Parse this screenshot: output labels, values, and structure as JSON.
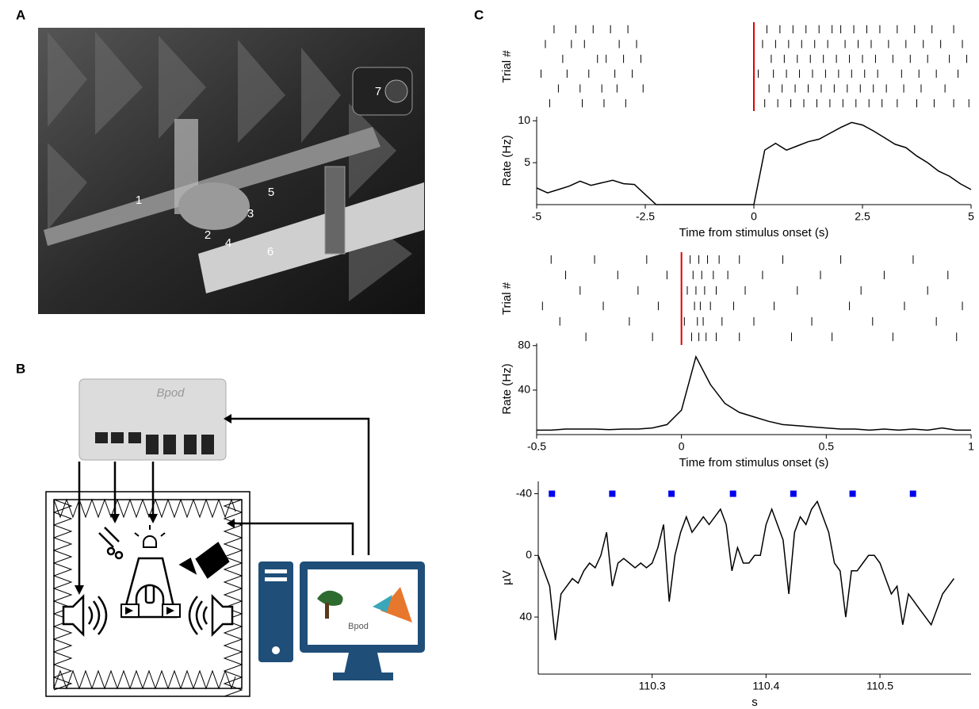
{
  "panel_labels": [
    "A",
    "B",
    "C"
  ],
  "photo": {
    "labels": [
      "1",
      "2",
      "3",
      "4",
      "5",
      "6",
      "7"
    ]
  },
  "diagram": {
    "device_label": "Bpod",
    "screen_label": "Bpod"
  },
  "chart_data": [
    {
      "type": "raster",
      "ylabel": "Trial #",
      "xlim": [
        -5,
        5
      ],
      "color": "#000000",
      "stimulus_onset": 0,
      "stimulus_color": "#e00000",
      "trials": [
        [
          -4.6,
          -4.1,
          -3.7,
          -3.3,
          -2.9,
          0.3,
          0.6,
          0.9,
          1.2,
          1.5,
          1.8,
          2.0,
          2.3,
          2.6,
          2.9,
          3.3,
          3.7,
          4.1,
          4.6
        ],
        [
          -4.8,
          -4.2,
          -3.9,
          -3.1,
          -2.7,
          0.2,
          0.5,
          0.8,
          1.1,
          1.4,
          1.7,
          2.1,
          2.4,
          2.7,
          3.1,
          3.5,
          3.9,
          4.3,
          4.8
        ],
        [
          -4.4,
          -3.6,
          -3.4,
          -3.0,
          -2.6,
          0.4,
          0.7,
          1.0,
          1.3,
          1.6,
          1.9,
          2.2,
          2.5,
          2.8,
          3.2,
          3.6,
          4.0,
          4.5,
          4.9
        ],
        [
          -4.9,
          -4.3,
          -3.8,
          -3.2,
          -2.8,
          0.1,
          0.45,
          0.75,
          1.05,
          1.35,
          1.65,
          1.95,
          2.25,
          2.55,
          2.85,
          3.4,
          3.8,
          4.2,
          4.7
        ],
        [
          -4.5,
          -4.0,
          -3.5,
          -3.15,
          -2.55,
          0.35,
          0.65,
          0.95,
          1.25,
          1.55,
          1.85,
          2.15,
          2.45,
          2.75,
          3.05,
          3.45,
          3.85,
          4.4
        ],
        [
          -4.7,
          -3.95,
          -3.45,
          -2.95,
          0.25,
          0.55,
          0.85,
          1.15,
          1.45,
          1.75,
          2.05,
          2.35,
          2.65,
          2.95,
          3.3,
          3.75,
          4.15,
          4.6,
          4.95
        ]
      ]
    },
    {
      "type": "line",
      "xlabel": "Time from stimulus onset (s)",
      "ylabel": "Rate (Hz)",
      "color": "#000000",
      "xlim": [
        -5,
        5
      ],
      "ylim": [
        0,
        10.5
      ],
      "xticks": [
        -5,
        -2.5,
        0,
        2.5,
        5
      ],
      "yticks": [
        5,
        10
      ],
      "x": [
        -5,
        -4.75,
        -4.5,
        -4.25,
        -4,
        -3.75,
        -3.5,
        -3.25,
        -3,
        -2.75,
        -2.5,
        -2.25,
        -2,
        -1.75,
        -1.5,
        -1.25,
        -1,
        -0.75,
        -0.5,
        -0.25,
        0,
        0.25,
        0.5,
        0.75,
        1,
        1.25,
        1.5,
        1.75,
        2,
        2.25,
        2.5,
        2.75,
        3,
        3.25,
        3.5,
        3.75,
        4,
        4.25,
        4.5,
        4.75,
        5
      ],
      "values": [
        2,
        1.4,
        1.8,
        2.2,
        2.8,
        2.3,
        2.6,
        2.9,
        2.5,
        2.4,
        1.2,
        0,
        0,
        0,
        0,
        0,
        0,
        0,
        0,
        0,
        0,
        6.5,
        7.3,
        6.5,
        7,
        7.5,
        7.8,
        8.5,
        9.2,
        9.8,
        9.5,
        8.8,
        8,
        7.2,
        6.8,
        5.8,
        5,
        4,
        3.4,
        2.5,
        1.8
      ]
    },
    {
      "type": "raster",
      "ylabel": "Trial #",
      "xlim": [
        -0.5,
        1
      ],
      "color": "#000000",
      "stimulus_onset": 0,
      "stimulus_color": "#e00000",
      "trials": [
        [
          -0.45,
          -0.3,
          -0.12,
          0.03,
          0.06,
          0.09,
          0.13,
          0.2,
          0.35,
          0.55,
          0.8
        ],
        [
          -0.4,
          -0.22,
          -0.05,
          0.04,
          0.07,
          0.11,
          0.16,
          0.28,
          0.48,
          0.7,
          0.92
        ],
        [
          -0.35,
          -0.15,
          0.02,
          0.05,
          0.08,
          0.12,
          0.22,
          0.4,
          0.62,
          0.85
        ],
        [
          -0.48,
          -0.27,
          -0.08,
          0.045,
          0.065,
          0.1,
          0.18,
          0.32,
          0.58,
          0.77,
          0.97
        ],
        [
          -0.42,
          -0.18,
          0.01,
          0.055,
          0.075,
          0.14,
          0.25,
          0.45,
          0.66,
          0.88
        ],
        [
          -0.33,
          -0.1,
          0.035,
          0.06,
          0.085,
          0.12,
          0.2,
          0.38,
          0.52,
          0.73,
          0.95
        ]
      ]
    },
    {
      "type": "line",
      "xlabel": "Time from stimulus onset (s)",
      "ylabel": "Rate (Hz)",
      "color": "#000000",
      "xlim": [
        -0.5,
        1
      ],
      "ylim": [
        0,
        82
      ],
      "xticks": [
        -0.5,
        0,
        0.5,
        1
      ],
      "yticks": [
        40,
        80
      ],
      "x": [
        -0.5,
        -0.45,
        -0.4,
        -0.35,
        -0.3,
        -0.25,
        -0.2,
        -0.15,
        -0.1,
        -0.05,
        0,
        0.05,
        0.1,
        0.15,
        0.2,
        0.25,
        0.3,
        0.35,
        0.4,
        0.45,
        0.5,
        0.55,
        0.6,
        0.65,
        0.7,
        0.75,
        0.8,
        0.85,
        0.9,
        0.95,
        1
      ],
      "values": [
        4,
        4,
        5,
        5,
        5,
        4.5,
        5,
        5,
        6,
        9,
        22,
        70,
        45,
        28,
        20,
        16,
        12,
        9,
        8,
        7,
        6,
        5,
        5,
        4,
        5,
        4,
        5,
        4,
        6,
        4,
        4
      ]
    },
    {
      "type": "line",
      "xlabel": "s",
      "ylabel": "µV",
      "color": "#000000",
      "y_inverted": true,
      "xlim": [
        110.2,
        110.58
      ],
      "ylim": [
        -48,
        77
      ],
      "xticks": [
        110.3,
        110.4,
        110.5
      ],
      "yticks": [
        -40,
        0,
        40
      ],
      "x": [
        110.2,
        110.205,
        110.21,
        110.215,
        110.22,
        110.225,
        110.23,
        110.235,
        110.24,
        110.245,
        110.25,
        110.255,
        110.26,
        110.265,
        110.27,
        110.275,
        110.28,
        110.285,
        110.29,
        110.295,
        110.3,
        110.305,
        110.31,
        110.315,
        110.32,
        110.325,
        110.33,
        110.335,
        110.34,
        110.345,
        110.35,
        110.355,
        110.36,
        110.365,
        110.37,
        110.375,
        110.38,
        110.385,
        110.39,
        110.395,
        110.4,
        110.405,
        110.41,
        110.415,
        110.42,
        110.425,
        110.43,
        110.435,
        110.44,
        110.445,
        110.45,
        110.455,
        110.46,
        110.465,
        110.47,
        110.475,
        110.48,
        110.485,
        110.49,
        110.495,
        110.5,
        110.505,
        110.51,
        110.515,
        110.52,
        110.525,
        110.53,
        110.535,
        110.54,
        110.545,
        110.55,
        110.555,
        110.56,
        110.565
      ],
      "values": [
        0,
        10,
        20,
        55,
        25,
        20,
        15,
        18,
        10,
        5,
        8,
        0,
        -15,
        20,
        5,
        2,
        5,
        8,
        5,
        8,
        5,
        -5,
        -20,
        30,
        0,
        -15,
        -25,
        -15,
        -20,
        -25,
        -20,
        -25,
        -30,
        -20,
        10,
        -5,
        5,
        5,
        0,
        0,
        -20,
        -30,
        -20,
        -10,
        25,
        -15,
        -25,
        -20,
        -30,
        -35,
        -25,
        -15,
        5,
        10,
        40,
        10,
        10,
        5,
        0,
        0,
        5,
        15,
        25,
        20,
        45,
        25,
        30,
        35,
        40,
        45,
        35,
        25,
        20,
        15
      ],
      "markers": {
        "color": "#0000ee",
        "x": [
          110.212,
          110.265,
          110.317,
          110.371,
          110.424,
          110.476,
          110.529
        ],
        "y": [
          -40,
          -40,
          -40,
          -40,
          -40,
          -40,
          -40
        ]
      }
    }
  ]
}
